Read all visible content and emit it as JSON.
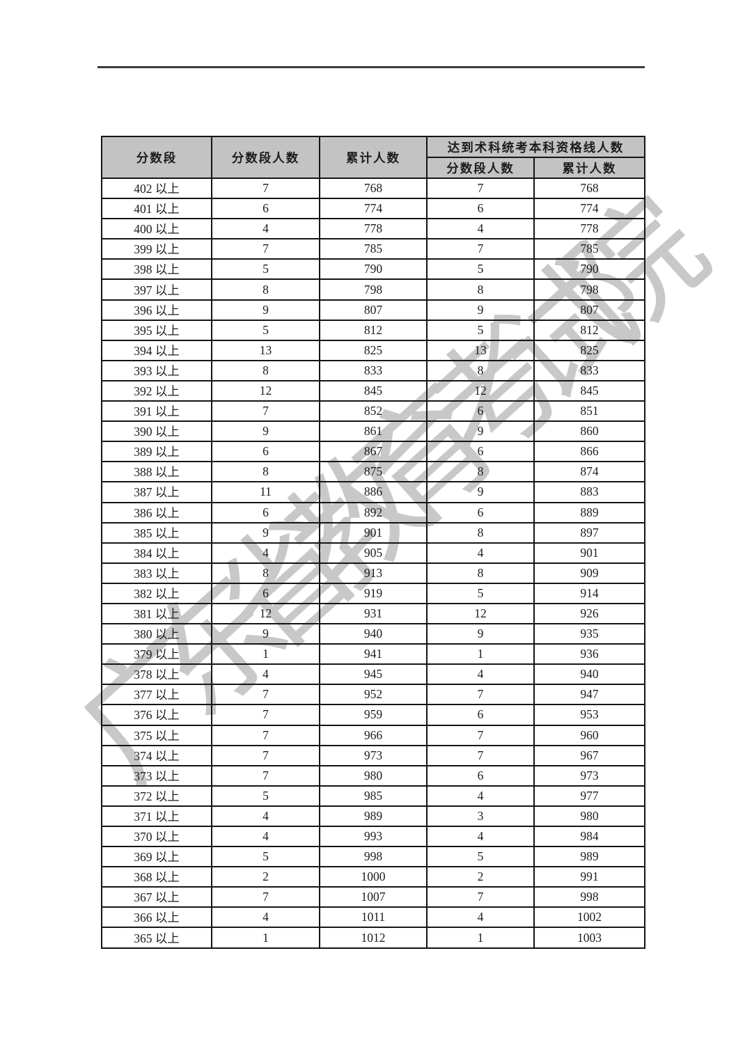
{
  "page": {
    "background_color": "#ffffff",
    "rule_color": "#3a3a3a"
  },
  "watermark": {
    "text": "广东省教育考试院",
    "color": "#c8c8c8"
  },
  "table": {
    "header_bg": "#c3c3c3",
    "border_color": "#141414",
    "header": {
      "score_range": "分数段",
      "range_count": "分数段人数",
      "cumulative": "累计人数",
      "qualified_group": "达到术科统考本科资格线人数",
      "qualified_range_count": "分数段人数",
      "qualified_cumulative": "累计人数"
    },
    "rows": [
      [
        "402 以上",
        "7",
        "768",
        "7",
        "768"
      ],
      [
        "401 以上",
        "6",
        "774",
        "6",
        "774"
      ],
      [
        "400 以上",
        "4",
        "778",
        "4",
        "778"
      ],
      [
        "399 以上",
        "7",
        "785",
        "7",
        "785"
      ],
      [
        "398 以上",
        "5",
        "790",
        "5",
        "790"
      ],
      [
        "397 以上",
        "8",
        "798",
        "8",
        "798"
      ],
      [
        "396 以上",
        "9",
        "807",
        "9",
        "807"
      ],
      [
        "395 以上",
        "5",
        "812",
        "5",
        "812"
      ],
      [
        "394 以上",
        "13",
        "825",
        "13",
        "825"
      ],
      [
        "393 以上",
        "8",
        "833",
        "8",
        "833"
      ],
      [
        "392 以上",
        "12",
        "845",
        "12",
        "845"
      ],
      [
        "391 以上",
        "7",
        "852",
        "6",
        "851"
      ],
      [
        "390 以上",
        "9",
        "861",
        "9",
        "860"
      ],
      [
        "389 以上",
        "6",
        "867",
        "6",
        "866"
      ],
      [
        "388 以上",
        "8",
        "875",
        "8",
        "874"
      ],
      [
        "387 以上",
        "11",
        "886",
        "9",
        "883"
      ],
      [
        "386 以上",
        "6",
        "892",
        "6",
        "889"
      ],
      [
        "385 以上",
        "9",
        "901",
        "8",
        "897"
      ],
      [
        "384 以上",
        "4",
        "905",
        "4",
        "901"
      ],
      [
        "383 以上",
        "8",
        "913",
        "8",
        "909"
      ],
      [
        "382 以上",
        "6",
        "919",
        "5",
        "914"
      ],
      [
        "381 以上",
        "12",
        "931",
        "12",
        "926"
      ],
      [
        "380 以上",
        "9",
        "940",
        "9",
        "935"
      ],
      [
        "379 以上",
        "1",
        "941",
        "1",
        "936"
      ],
      [
        "378 以上",
        "4",
        "945",
        "4",
        "940"
      ],
      [
        "377 以上",
        "7",
        "952",
        "7",
        "947"
      ],
      [
        "376 以上",
        "7",
        "959",
        "6",
        "953"
      ],
      [
        "375 以上",
        "7",
        "966",
        "7",
        "960"
      ],
      [
        "374 以上",
        "7",
        "973",
        "7",
        "967"
      ],
      [
        "373 以上",
        "7",
        "980",
        "6",
        "973"
      ],
      [
        "372 以上",
        "5",
        "985",
        "4",
        "977"
      ],
      [
        "371 以上",
        "4",
        "989",
        "3",
        "980"
      ],
      [
        "370 以上",
        "4",
        "993",
        "4",
        "984"
      ],
      [
        "369 以上",
        "5",
        "998",
        "5",
        "989"
      ],
      [
        "368 以上",
        "2",
        "1000",
        "2",
        "991"
      ],
      [
        "367 以上",
        "7",
        "1007",
        "7",
        "998"
      ],
      [
        "366 以上",
        "4",
        "1011",
        "4",
        "1002"
      ],
      [
        "365 以上",
        "1",
        "1012",
        "1",
        "1003"
      ]
    ]
  }
}
